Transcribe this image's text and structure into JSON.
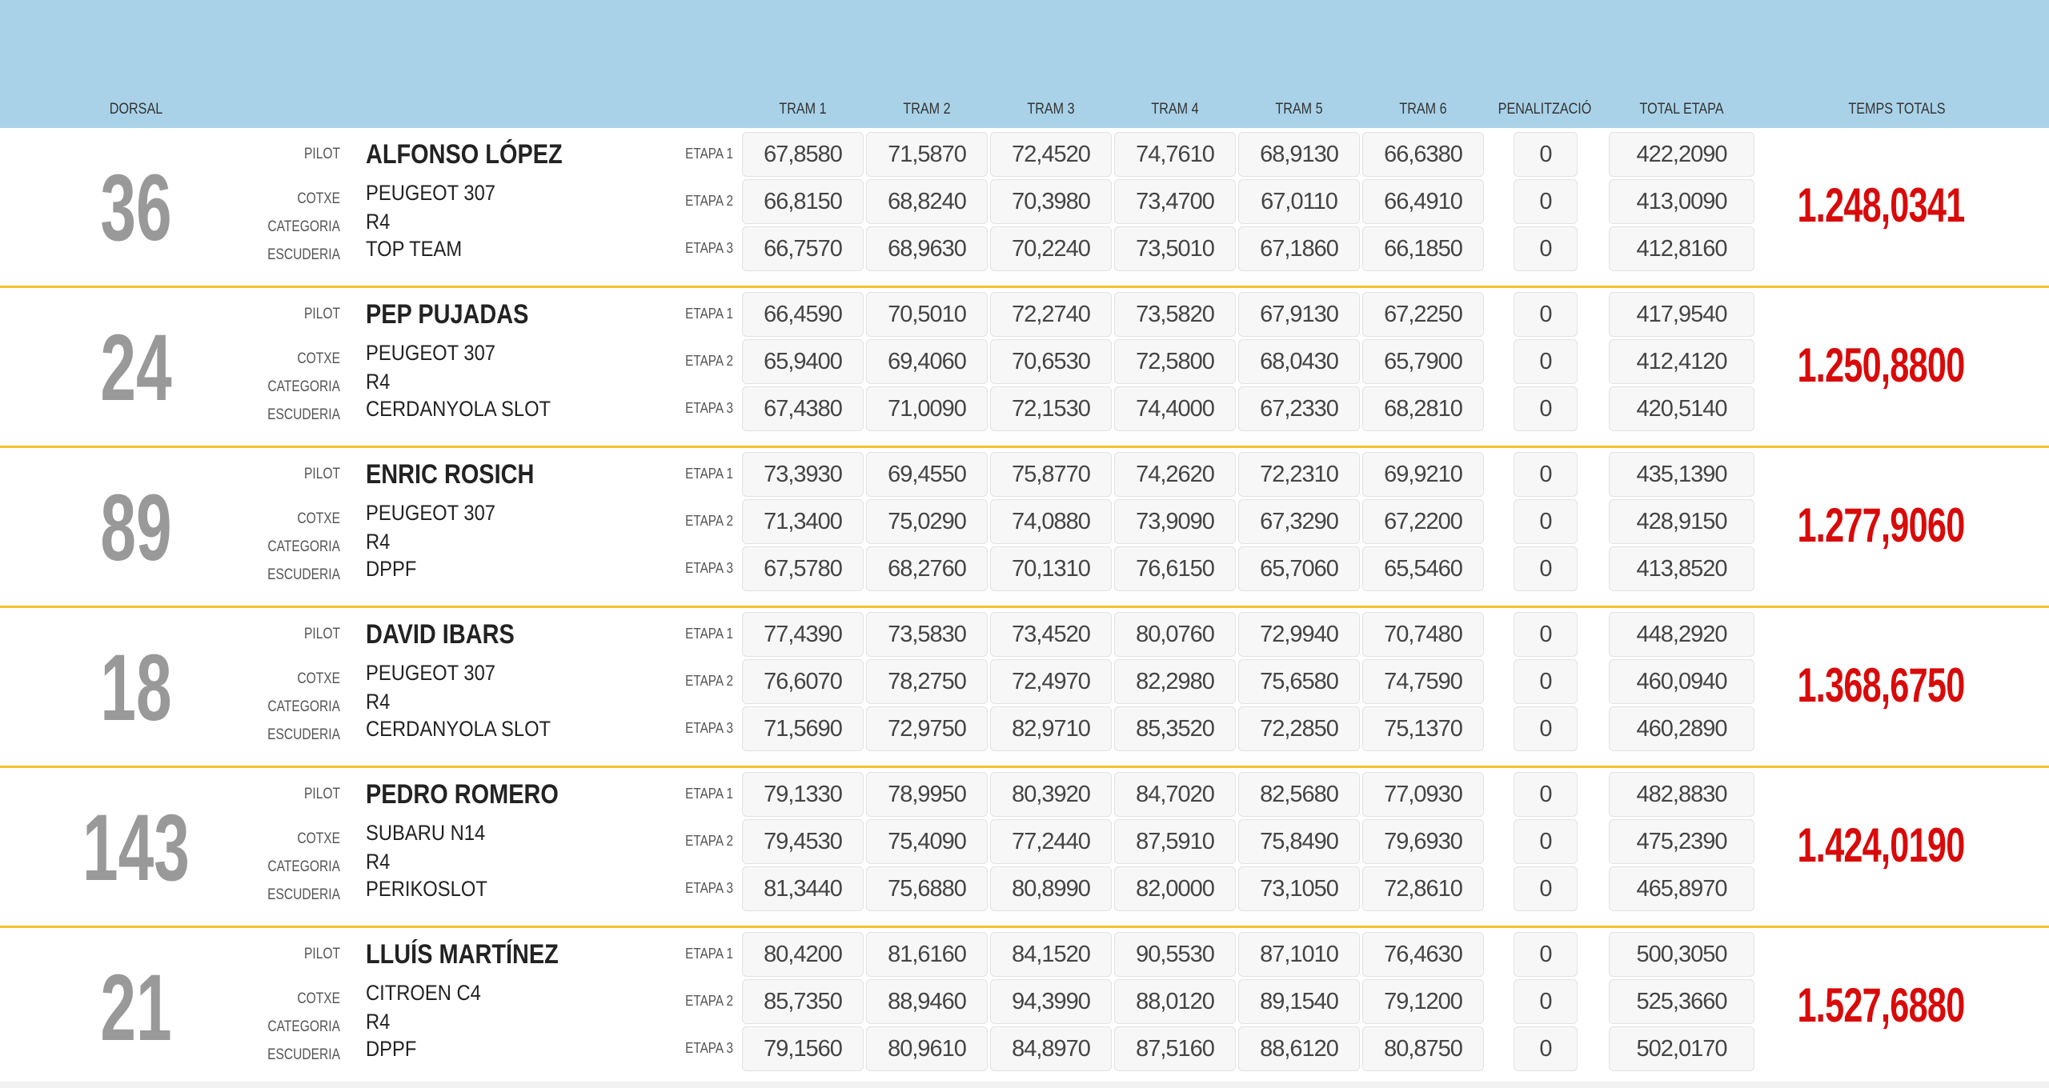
{
  "header": {
    "dorsal": "DORSAL",
    "trams": [
      "TRAM 1",
      "TRAM 2",
      "TRAM 3",
      "TRAM 4",
      "TRAM 5",
      "TRAM 6"
    ],
    "penalitzacio": "PENALITZACIÓ",
    "total_etapa": "TOTAL ETAPA",
    "temps_totals": "TEMPS TOTALS"
  },
  "labels": {
    "pilot": "PILOT",
    "cotxe": "COTXE",
    "categoria": "CATEGORIA",
    "escuderia": "ESCUDERIA",
    "etapes": [
      "ETAPA 1",
      "ETAPA 2",
      "ETAPA 3"
    ]
  },
  "colors": {
    "header_bg": "#a9d2e8",
    "separator": "#f5c22a",
    "total": "#d90a0a",
    "dorsal": "#999999"
  },
  "entries": [
    {
      "dorsal": "36",
      "pilot": "ALFONSO LÓPEZ",
      "cotxe": "PEUGEOT 307",
      "categoria": "R4",
      "escuderia": "TOP TEAM",
      "total": "1.248,0341",
      "etapes": [
        {
          "trams": [
            "67,8580",
            "71,5870",
            "72,4520",
            "74,7610",
            "68,9130",
            "66,6380"
          ],
          "pen": "0",
          "total": "422,2090"
        },
        {
          "trams": [
            "66,8150",
            "68,8240",
            "70,3980",
            "73,4700",
            "67,0110",
            "66,4910"
          ],
          "pen": "0",
          "total": "413,0090"
        },
        {
          "trams": [
            "66,7570",
            "68,9630",
            "70,2240",
            "73,5010",
            "67,1860",
            "66,1850"
          ],
          "pen": "0",
          "total": "412,8160"
        }
      ]
    },
    {
      "dorsal": "24",
      "pilot": "PEP PUJADAS",
      "cotxe": "PEUGEOT 307",
      "categoria": "R4",
      "escuderia": "CERDANYOLA SLOT",
      "total": "1.250,8800",
      "etapes": [
        {
          "trams": [
            "66,4590",
            "70,5010",
            "72,2740",
            "73,5820",
            "67,9130",
            "67,2250"
          ],
          "pen": "0",
          "total": "417,9540"
        },
        {
          "trams": [
            "65,9400",
            "69,4060",
            "70,6530",
            "72,5800",
            "68,0430",
            "65,7900"
          ],
          "pen": "0",
          "total": "412,4120"
        },
        {
          "trams": [
            "67,4380",
            "71,0090",
            "72,1530",
            "74,4000",
            "67,2330",
            "68,2810"
          ],
          "pen": "0",
          "total": "420,5140"
        }
      ]
    },
    {
      "dorsal": "89",
      "pilot": "ENRIC ROSICH",
      "cotxe": "PEUGEOT 307",
      "categoria": "R4",
      "escuderia": "DPPF",
      "total": "1.277,9060",
      "etapes": [
        {
          "trams": [
            "73,3930",
            "69,4550",
            "75,8770",
            "74,2620",
            "72,2310",
            "69,9210"
          ],
          "pen": "0",
          "total": "435,1390"
        },
        {
          "trams": [
            "71,3400",
            "75,0290",
            "74,0880",
            "73,9090",
            "67,3290",
            "67,2200"
          ],
          "pen": "0",
          "total": "428,9150"
        },
        {
          "trams": [
            "67,5780",
            "68,2760",
            "70,1310",
            "76,6150",
            "65,7060",
            "65,5460"
          ],
          "pen": "0",
          "total": "413,8520"
        }
      ]
    },
    {
      "dorsal": "18",
      "pilot": "DAVID IBARS",
      "cotxe": "PEUGEOT 307",
      "categoria": "R4",
      "escuderia": "CERDANYOLA SLOT",
      "total": "1.368,6750",
      "etapes": [
        {
          "trams": [
            "77,4390",
            "73,5830",
            "73,4520",
            "80,0760",
            "72,9940",
            "70,7480"
          ],
          "pen": "0",
          "total": "448,2920"
        },
        {
          "trams": [
            "76,6070",
            "78,2750",
            "72,4970",
            "82,2980",
            "75,6580",
            "74,7590"
          ],
          "pen": "0",
          "total": "460,0940"
        },
        {
          "trams": [
            "71,5690",
            "72,9750",
            "82,9710",
            "85,3520",
            "72,2850",
            "75,1370"
          ],
          "pen": "0",
          "total": "460,2890"
        }
      ]
    },
    {
      "dorsal": "143",
      "pilot": "PEDRO ROMERO",
      "cotxe": "SUBARU N14",
      "categoria": "R4",
      "escuderia": "PERIKOSLOT",
      "total": "1.424,0190",
      "etapes": [
        {
          "trams": [
            "79,1330",
            "78,9950",
            "80,3920",
            "84,7020",
            "82,5680",
            "77,0930"
          ],
          "pen": "0",
          "total": "482,8830"
        },
        {
          "trams": [
            "79,4530",
            "75,4090",
            "77,2440",
            "87,5910",
            "75,8490",
            "79,6930"
          ],
          "pen": "0",
          "total": "475,2390"
        },
        {
          "trams": [
            "81,3440",
            "75,6880",
            "80,8990",
            "82,0000",
            "73,1050",
            "72,8610"
          ],
          "pen": "0",
          "total": "465,8970"
        }
      ]
    },
    {
      "dorsal": "21",
      "pilot": "LLUÍS MARTÍNEZ",
      "cotxe": "CITROEN C4",
      "categoria": "R4",
      "escuderia": "DPPF",
      "total": "1.527,6880",
      "etapes": [
        {
          "trams": [
            "80,4200",
            "81,6160",
            "84,1520",
            "90,5530",
            "87,1010",
            "76,4630"
          ],
          "pen": "0",
          "total": "500,3050"
        },
        {
          "trams": [
            "85,7350",
            "88,9460",
            "94,3990",
            "88,0120",
            "89,1540",
            "79,1200"
          ],
          "pen": "0",
          "total": "525,3660"
        },
        {
          "trams": [
            "79,1560",
            "80,9610",
            "84,8970",
            "87,5160",
            "88,6120",
            "80,8750"
          ],
          "pen": "0",
          "total": "502,0170"
        }
      ]
    }
  ]
}
